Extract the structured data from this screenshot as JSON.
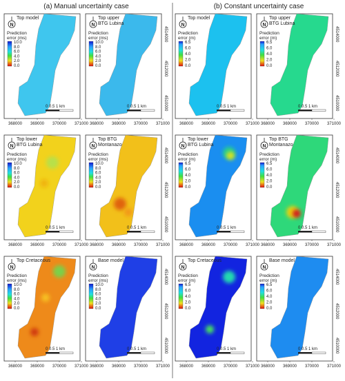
{
  "figure": {
    "left_heading": "(a) Manual uncertainty case",
    "right_heading": "(b) Constant uncertainty case",
    "legend_title_line1": "Prediction",
    "legend_title_ms": "error (ms)",
    "legend_title_m": "error (m)",
    "scale_label": "0   0.5  1 km",
    "north_label": "N",
    "x_ticks": [
      "368000",
      "369000",
      "370000",
      "371000"
    ],
    "y_ticks": [
      "4514000",
      "4512000",
      "4510000"
    ]
  },
  "panels": [
    {
      "title": [
        "Top model"
      ],
      "unit": "ms",
      "legend": [
        "10.0",
        "8.0",
        "6.0",
        "4.0",
        "2.0",
        "0.0"
      ],
      "base_color": "#3fc6ee",
      "colors": {
        "cyan": "#3fc6ee"
      },
      "hotspots": []
    },
    {
      "title": [
        "Top upper",
        "BTG Lubina"
      ],
      "unit": "ms",
      "legend": [
        "10.0",
        "8.0",
        "6.0",
        "4.0",
        "2.0",
        "0.0"
      ],
      "base_color": "#3bb9ec",
      "hotspots": []
    },
    {
      "title": [
        "Top model"
      ],
      "unit": "m",
      "legend": [
        "6.5",
        "6.0",
        "4.0",
        "2.0",
        "0.0"
      ],
      "base_color": "#1cc1ef",
      "hotspots": []
    },
    {
      "title": [
        "Top upper",
        "BTG Lubina"
      ],
      "unit": "m",
      "legend": [
        "6.5",
        "6.0",
        "4.0",
        "2.0",
        "0.0"
      ],
      "base_color": "#26d98e",
      "hotspots": []
    },
    {
      "title": [
        "Top lower",
        "BTG Lubina"
      ],
      "unit": "ms",
      "legend": [
        "10.0",
        "8.0",
        "6.0",
        "4.0",
        "2.0",
        "0.0"
      ],
      "base_color": "#f2d21c",
      "hotspots": [
        "#b8e04a",
        "#f0b410"
      ]
    },
    {
      "title": [
        "Top BTG",
        "Montanazo"
      ],
      "unit": "ms",
      "legend": [
        "10.0",
        "8.0",
        "6.0",
        "4.0",
        "2.0",
        "0.0"
      ],
      "base_color": "#f2c01a",
      "hotspots": [
        "#e06410",
        "#f29818"
      ]
    },
    {
      "title": [
        "Top lower",
        "BTG Lubina"
      ],
      "unit": "m",
      "legend": [
        "6.5",
        "6.0",
        "4.0",
        "2.0",
        "0.0"
      ],
      "base_color": "#1a8ef0",
      "hotspots": [
        "#28d08a",
        "#d8e020"
      ]
    },
    {
      "title": [
        "Top BTG",
        "Montanazo"
      ],
      "unit": "m",
      "legend": [
        "6.5",
        "6.0",
        "4.0",
        "2.0",
        "0.0"
      ],
      "base_color": "#2ed87a",
      "hotspots": [
        "#e8d010",
        "#d01a1a"
      ]
    },
    {
      "title": [
        "Top Cretaceous"
      ],
      "unit": "ms",
      "legend": [
        "10.0",
        "8.0",
        "6.0",
        "4.0",
        "2.0",
        "0.0"
      ],
      "base_color": "#ee8a1a",
      "hotspots": [
        "#7ad04a",
        "#d03a10",
        "#f6c020"
      ]
    },
    {
      "title": [
        "Base model"
      ],
      "unit": "ms",
      "legend": [
        "10.0",
        "8.0",
        "6.0",
        "4.0",
        "2.0",
        "0.0"
      ],
      "base_color": "#1f3fe6",
      "hotspots": []
    },
    {
      "title": [
        "Top Cretaceous"
      ],
      "unit": "m",
      "legend": [
        "6.5",
        "6.0",
        "4.0",
        "2.0",
        "0.0"
      ],
      "base_color": "#1224e0",
      "hotspots": [
        "#22d8b0",
        "#46e060"
      ]
    },
    {
      "title": [
        "Base model"
      ],
      "unit": "m",
      "legend": [
        "6.5",
        "6.0",
        "4.0",
        "2.0",
        "0.0"
      ],
      "base_color": "#1e8cf0",
      "hotspots": []
    }
  ]
}
